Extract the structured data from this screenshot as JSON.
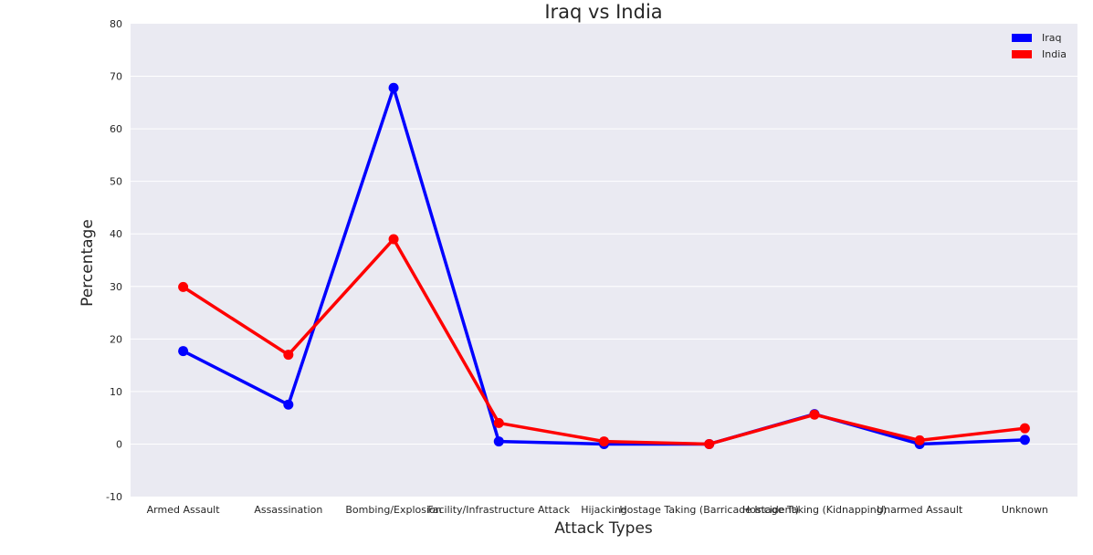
{
  "chart_data": {
    "type": "line",
    "title": "Iraq vs India",
    "xlabel": "Attack Types",
    "ylabel": "Percentage",
    "ylim": [
      -10,
      80
    ],
    "yticks": [
      -10,
      0,
      10,
      20,
      30,
      40,
      50,
      60,
      70,
      80
    ],
    "categories": [
      "Armed Assault",
      "Assassination",
      "Bombing/Explosion",
      "Facility/Infrastructure Attack",
      "Hijacking",
      "Hostage Taking (Barricade Incident)",
      "Hostage Taking (Kidnapping)",
      "Unarmed Assault",
      "Unknown"
    ],
    "series": [
      {
        "name": "Iraq",
        "color": "#0000ff",
        "values": [
          17.7,
          7.5,
          67.8,
          0.5,
          0.0,
          0.0,
          5.7,
          0.0,
          0.8
        ]
      },
      {
        "name": "India",
        "color": "#ff0000",
        "values": [
          29.9,
          17.0,
          39.0,
          4.0,
          0.5,
          0.0,
          5.6,
          0.7,
          3.0
        ]
      }
    ],
    "grid": true,
    "legend_position": "top-right",
    "background_color": "#eaeaf2"
  }
}
